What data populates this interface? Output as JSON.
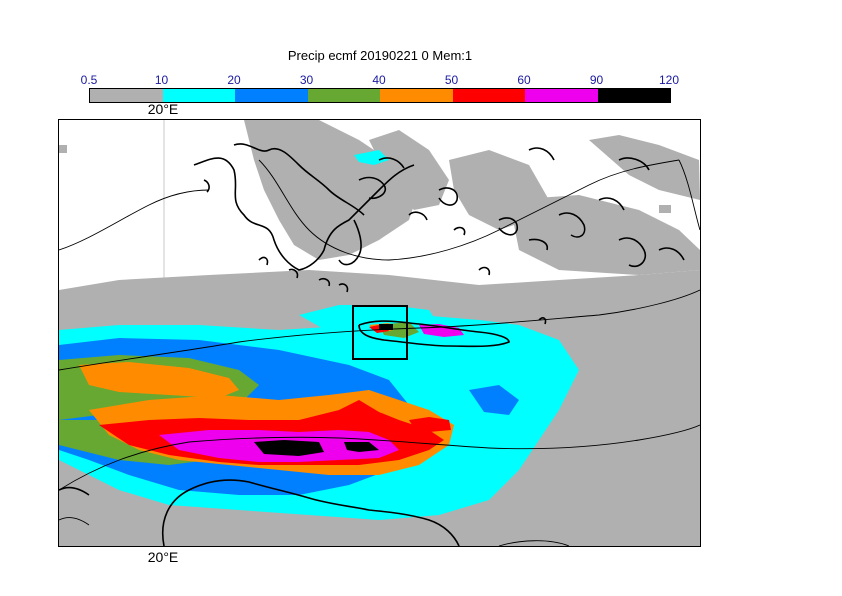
{
  "title": "Precip ecmf 20190221 0 Mem:1",
  "legend": {
    "ticks": [
      "0.5",
      "10",
      "20",
      "30",
      "40",
      "50",
      "60",
      "90",
      "120"
    ],
    "colors": [
      "#b0b0b0",
      "#00ffff",
      "#0080ff",
      "#66a832",
      "#ff8c00",
      "#ff0000",
      "#ee00ee",
      "#000000"
    ]
  },
  "axes": {
    "top_lon_label": "20°E",
    "bottom_lon_label": "20°E"
  }
}
